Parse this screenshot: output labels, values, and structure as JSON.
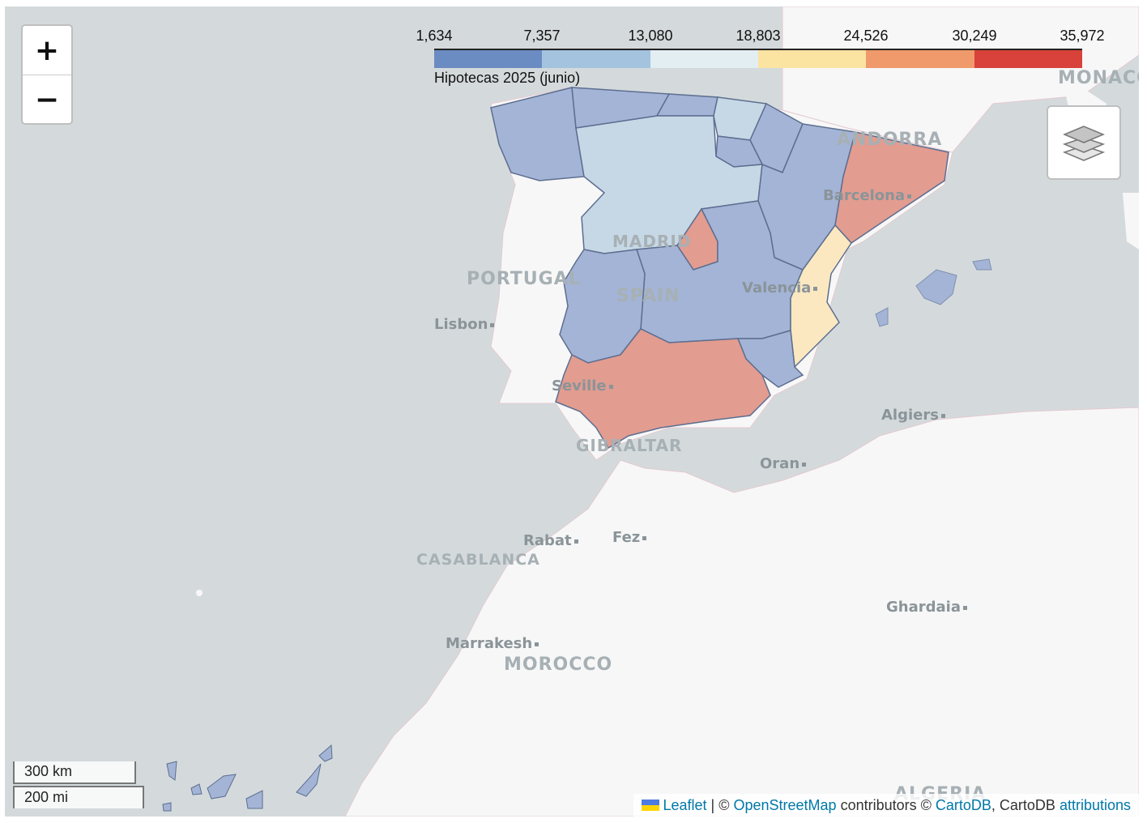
{
  "zoom": {
    "in_label": "+",
    "out_label": "−"
  },
  "legend": {
    "ticks": [
      "1,634",
      "7,357",
      "13,080",
      "18,803",
      "24,526",
      "30,249",
      "35,972"
    ],
    "colors": [
      "#6b8cc2",
      "#a3c3df",
      "#e3eef3",
      "#fbe3a2",
      "#f09a6c",
      "#d8423a"
    ],
    "caption": "Hipotecas 2025 (junio)"
  },
  "map_labels": {
    "countries": [
      "MONACO",
      "ANDORRA",
      "MADRID",
      "PORTUGAL",
      "SPAIN",
      "GIBRALTAR",
      "CASABLANCA",
      "MOROCCO",
      "ALGERIA"
    ],
    "cities": [
      "Barcelona",
      "Valencia",
      "Lisbon",
      "Seville",
      "Algiers",
      "Oran",
      "Rabat",
      "Fez",
      "Ghardaia",
      "Marrakesh"
    ]
  },
  "region_colors": {
    "blue": "#a3b4d6",
    "light": "#c6d7e6",
    "red": "#e29c90",
    "yellow": "#fbe8c0"
  },
  "scale": {
    "km": "300 km",
    "mi": "200 mi"
  },
  "attribution": {
    "leaflet": "Leaflet",
    "sep1": " | © ",
    "osm": "OpenStreetMap",
    "mid": " contributors © ",
    "carto": "CartoDB",
    "mid2": ", CartoDB ",
    "attr": "attributions"
  }
}
